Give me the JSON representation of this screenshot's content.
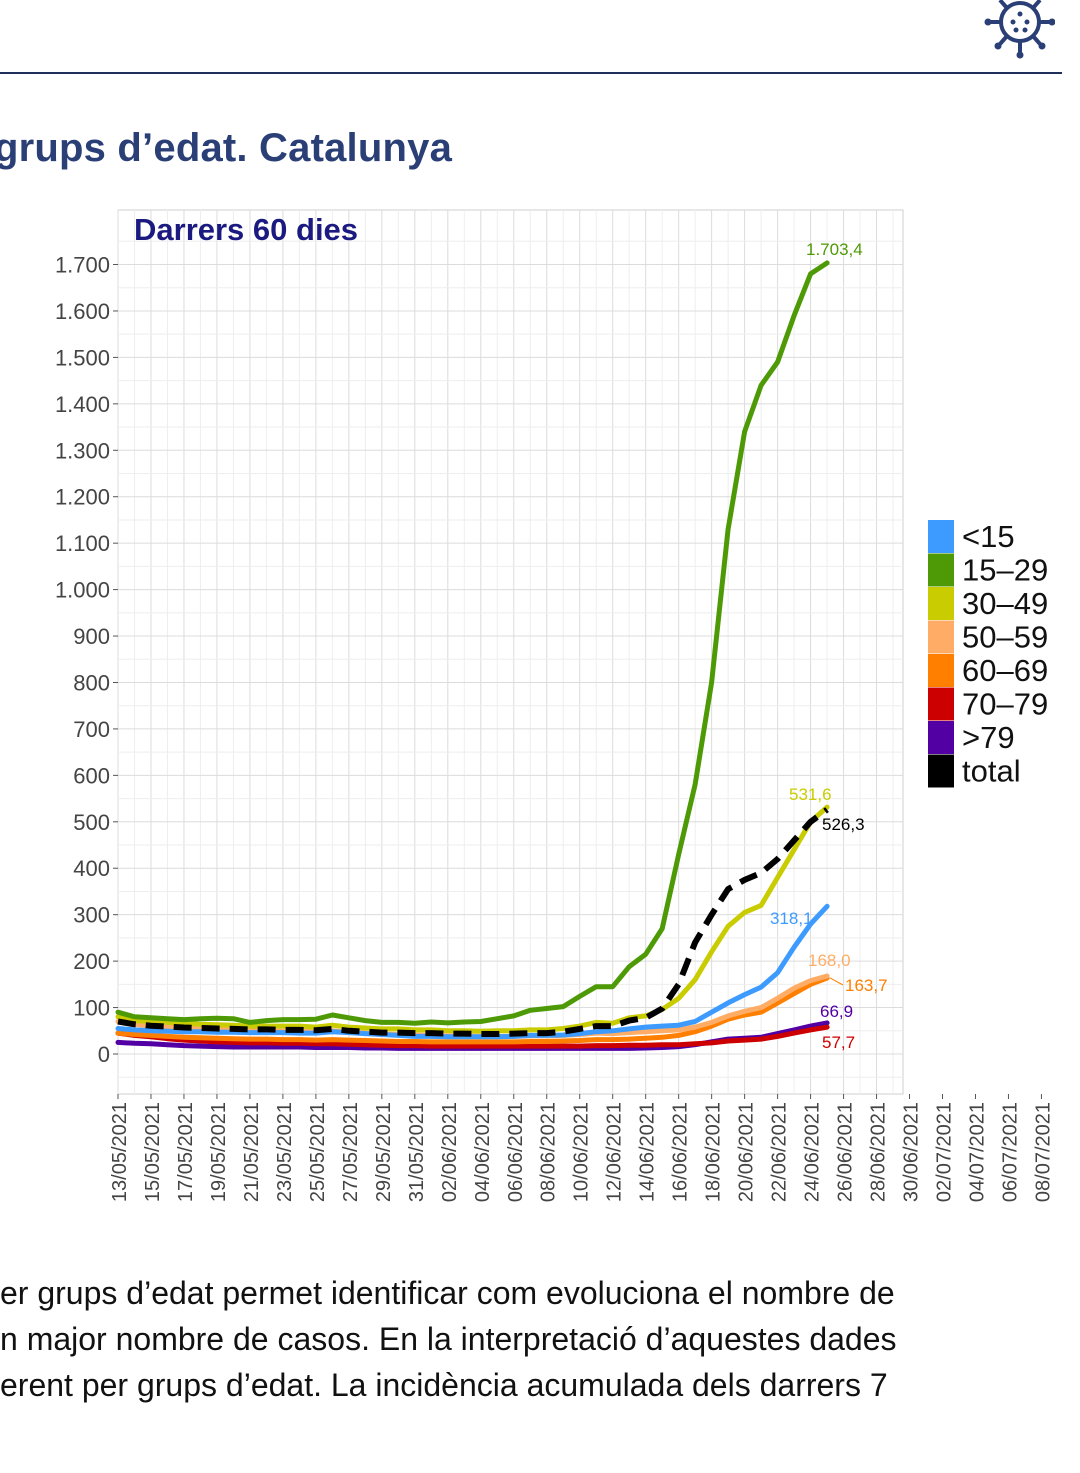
{
  "page": {
    "heading": "grups d’edat. Catalunya",
    "paragraph_lines": [
      "er grups d’edat permet identificar com evoluciona el nombre de",
      "n major nombre de casos. En la interpretació d’aquestes dades",
      "erent per grups d’edat.  La incidència acumulada dels darrers 7"
    ],
    "logo_icon": "virus-icon",
    "accent_color": "#2b3f77"
  },
  "chart_data": {
    "type": "line",
    "title": "Darrers 60 dies",
    "xlabel": "",
    "ylabel": "",
    "ylim": [
      -80,
      1790
    ],
    "yticks": [
      0,
      100,
      200,
      300,
      400,
      500,
      600,
      700,
      800,
      900,
      1000,
      1100,
      1200,
      1300,
      1400,
      1500,
      1600,
      1700
    ],
    "ytick_labels": [
      "0",
      "100",
      "200",
      "300",
      "400",
      "500",
      "600",
      "700",
      "800",
      "900",
      "1.000",
      "1.100",
      "1.200",
      "1.300",
      "1.400",
      "1.500",
      "1.600",
      "1.700"
    ],
    "x_tick_labels": [
      "13/05/2021",
      "15/05/2021",
      "17/05/2021",
      "19/05/2021",
      "21/05/2021",
      "23/05/2021",
      "25/05/2021",
      "27/05/2021",
      "29/05/2021",
      "31/05/2021",
      "02/06/2021",
      "04/06/2021",
      "06/06/2021",
      "08/06/2021",
      "10/06/2021",
      "12/06/2021",
      "14/06/2021",
      "16/06/2021",
      "18/06/2021",
      "20/06/2021",
      "22/06/2021",
      "24/06/2021",
      "26/06/2021",
      "28/06/2021",
      "30/06/2021",
      "02/07/2021",
      "04/07/2021",
      "06/07/2021",
      "08/07/2021"
    ],
    "grid": true,
    "legend_position": "right",
    "series": [
      {
        "name": "15–29",
        "color": "#4e9a06",
        "dashed": false,
        "values": [
          90,
          80,
          78,
          76,
          74,
          76,
          77,
          76,
          68,
          72,
          74,
          74,
          75,
          84,
          78,
          72,
          68,
          68,
          66,
          69,
          67,
          69,
          70,
          76,
          82,
          94,
          98,
          102,
          124,
          145,
          145,
          188,
          215,
          270,
          430,
          580,
          800,
          1130,
          1340,
          1440,
          1490,
          1590,
          1680,
          1703.4
        ],
        "end_label": "1.703,4"
      },
      {
        "name": "30–49",
        "color": "#c9cc00",
        "dashed": false,
        "values": [
          80,
          72,
          70,
          68,
          66,
          64,
          63,
          62,
          60,
          60,
          60,
          60,
          58,
          62,
          58,
          56,
          54,
          54,
          52,
          52,
          50,
          50,
          49,
          50,
          50,
          52,
          52,
          55,
          60,
          68,
          66,
          78,
          82,
          96,
          120,
          160,
          220,
          275,
          305,
          320,
          380,
          440,
          500,
          531.6
        ],
        "end_label": "531,6"
      },
      {
        "name": "total",
        "color": "#000000",
        "dashed": true,
        "values": [
          70,
          64,
          61,
          59,
          57,
          56,
          55,
          54,
          53,
          53,
          52,
          52,
          51,
          54,
          50,
          48,
          46,
          46,
          45,
          45,
          44,
          44,
          43,
          43,
          44,
          45,
          45,
          48,
          54,
          60,
          60,
          72,
          78,
          98,
          150,
          240,
          300,
          355,
          375,
          390,
          420,
          460,
          500,
          526.3
        ],
        "end_label": "526,3"
      },
      {
        "name": "<15",
        "color": "#3d9bff",
        "dashed": false,
        "values": [
          55,
          52,
          50,
          49,
          48,
          48,
          47,
          47,
          46,
          46,
          46,
          45,
          45,
          48,
          46,
          44,
          42,
          40,
          38,
          38,
          37,
          37,
          37,
          37,
          38,
          40,
          40,
          41,
          44,
          48,
          50,
          54,
          58,
          60,
          62,
          70,
          90,
          110,
          128,
          144,
          175,
          230,
          280,
          318.1
        ],
        "end_label": "318,1"
      },
      {
        "name": "50–59",
        "color": "#ffad66",
        "dashed": false,
        "values": [
          70,
          64,
          60,
          58,
          56,
          54,
          53,
          52,
          50,
          50,
          49,
          49,
          48,
          50,
          47,
          45,
          43,
          42,
          41,
          40,
          39,
          39,
          38,
          38,
          38,
          39,
          39,
          40,
          42,
          45,
          44,
          46,
          48,
          50,
          52,
          58,
          68,
          82,
          92,
          100,
          120,
          142,
          158,
          168.0
        ],
        "end_label": "168,0"
      },
      {
        "name": "60–69",
        "color": "#ff7f00",
        "dashed": false,
        "values": [
          45,
          42,
          40,
          38,
          36,
          35,
          34,
          33,
          32,
          32,
          31,
          31,
          30,
          31,
          30,
          29,
          28,
          27,
          27,
          26,
          26,
          26,
          26,
          26,
          26,
          27,
          27,
          28,
          29,
          31,
          31,
          32,
          34,
          36,
          40,
          48,
          60,
          75,
          84,
          90,
          110,
          130,
          150,
          163.7
        ],
        "end_label": "163,7"
      },
      {
        "name": "70–79",
        "color": "#cc0000",
        "dashed": false,
        "values": [
          45,
          40,
          37,
          33,
          30,
          28,
          26,
          25,
          24,
          24,
          23,
          23,
          22,
          22,
          21,
          20,
          19,
          18,
          18,
          17,
          17,
          17,
          17,
          17,
          17,
          17,
          17,
          17,
          17,
          18,
          18,
          19,
          19,
          20,
          20,
          22,
          24,
          28,
          30,
          32,
          38,
          45,
          52,
          57.7
        ],
        "end_label": "57,7"
      },
      {
        "name": ">79",
        "color": "#5200a3",
        "dashed": false,
        "values": [
          25,
          23,
          22,
          20,
          18,
          17,
          16,
          15,
          15,
          15,
          15,
          15,
          14,
          14,
          14,
          13,
          13,
          12,
          12,
          12,
          12,
          12,
          12,
          12,
          12,
          12,
          12,
          12,
          12,
          12,
          12,
          12,
          13,
          14,
          16,
          20,
          26,
          32,
          34,
          36,
          44,
          52,
          60,
          66.9
        ],
        "end_label": "66,9"
      }
    ],
    "legend_order": [
      "<15",
      "15–29",
      "30–49",
      "50–59",
      "60–69",
      "70–79",
      ">79",
      "total"
    ]
  }
}
